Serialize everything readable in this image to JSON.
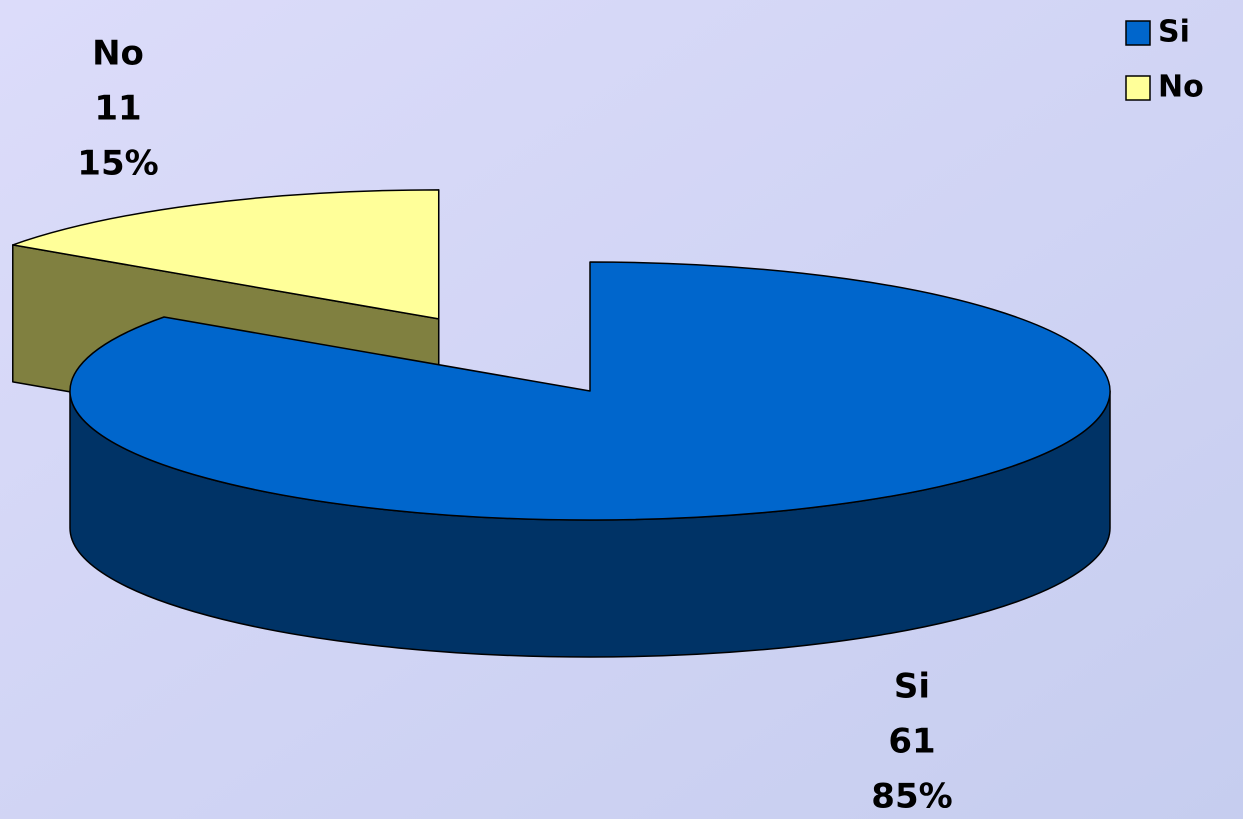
{
  "chart_data": {
    "type": "pie",
    "categories": [
      "Si",
      "No"
    ],
    "values": [
      61,
      11
    ],
    "percent_labels": [
      "85%",
      "15%"
    ],
    "colors": [
      "#0066cc",
      "#ffff99"
    ],
    "side_colors": [
      "#003366",
      "#808040"
    ],
    "legend": "top-right"
  }
}
